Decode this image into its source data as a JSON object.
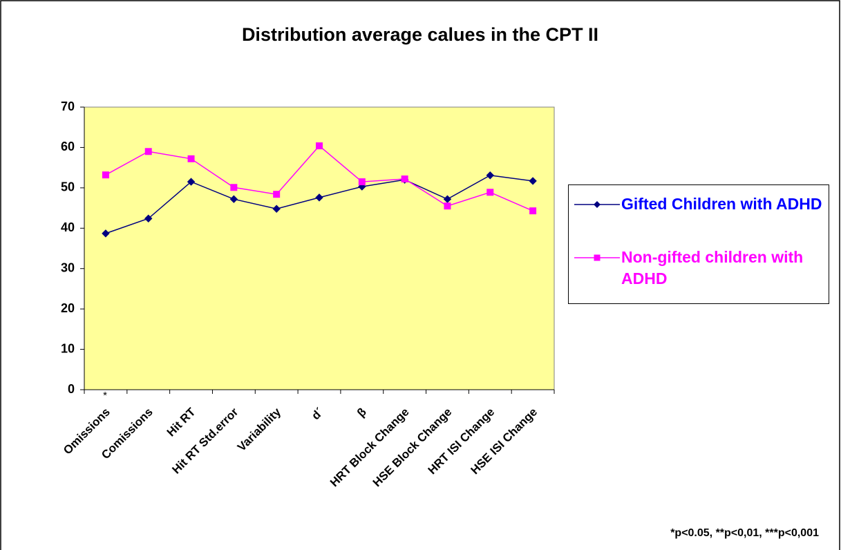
{
  "chart_data": {
    "type": "line",
    "title": "Distribution average calues in the CPT II",
    "categories": [
      "Omissions",
      "Comissions",
      "Hit RT",
      "Hit RT Std.error",
      "Variability",
      "d´",
      "β",
      "HRT Block Change",
      "HSE Block Change",
      "HRT ISI Change",
      "HSE ISI Change"
    ],
    "series": [
      {
        "name": "Gifted Children with ADHD",
        "color": "#000080",
        "text_color": "#0000ff",
        "marker": "diamond",
        "values": [
          38.7,
          42.4,
          51.5,
          47.2,
          44.8,
          47.6,
          50.3,
          52.0,
          47.2,
          53.1,
          51.7
        ]
      },
      {
        "name": "Non-gifted children with ADHD",
        "color": "#ff00ff",
        "text_color": "#ff00ff",
        "marker": "square",
        "values": [
          53.2,
          59.0,
          57.2,
          50.1,
          48.4,
          60.4,
          51.5,
          52.2,
          45.5,
          48.9,
          44.3
        ]
      }
    ],
    "ylim": [
      0,
      70
    ],
    "yticks": [
      0,
      10,
      20,
      30,
      40,
      50,
      60,
      70
    ],
    "plot_background": "#ffff99",
    "legend": "right",
    "category_note": "*",
    "annotation": "*p<0.05, **p<0,01, ***p<0,001"
  }
}
